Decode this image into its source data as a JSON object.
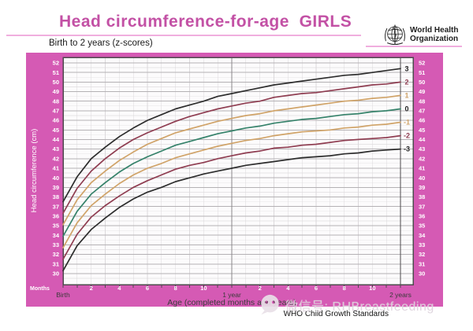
{
  "header": {
    "title": "Head circumference-for-age  GIRLS",
    "subtitle": "Birth to 2 years (z-scores)",
    "logo_line1": "World Health",
    "logo_line2": "Organization"
  },
  "colors": {
    "board_pink": "#d55ab4",
    "title_pink": "#c351a5",
    "rule_pink": "#f0aede",
    "plot_background": "#fcfbfc",
    "grid_major": "#b4b1b4",
    "grid_minor": "#e6e4e6",
    "grid_month": "#dcd9dc",
    "grid_year": "#8a878a",
    "plot_border": "#4d4a4d",
    "axis_text_light": "#ffffff",
    "axis_text_dark": "#3a3a3a"
  },
  "chart_data": {
    "type": "line",
    "title": "Head circumference-for-age GIRLS",
    "subtitle": "Birth to 2 years (z-scores)",
    "xlabel": "Age (completed months and years)",
    "ylabel": "Head circumference (cm)",
    "x_axis_unit": "Months",
    "xlim_months": [
      0,
      24
    ],
    "ylim": [
      30,
      52
    ],
    "grid": true,
    "legend_position": "inline-right-margin",
    "y_ticks": [
      30,
      31,
      32,
      33,
      34,
      35,
      36,
      37,
      38,
      39,
      40,
      41,
      42,
      43,
      44,
      45,
      46,
      47,
      48,
      49,
      50,
      51,
      52
    ],
    "x": [
      0,
      1,
      2,
      3,
      4,
      5,
      6,
      7,
      8,
      9,
      10,
      11,
      12,
      13,
      14,
      15,
      16,
      17,
      18,
      19,
      20,
      21,
      22,
      23,
      24
    ],
    "month_tick_labels": [
      {
        "month": 2,
        "label": "2"
      },
      {
        "month": 4,
        "label": "4"
      },
      {
        "month": 6,
        "label": "6"
      },
      {
        "month": 8,
        "label": "8"
      },
      {
        "month": 10,
        "label": "10"
      },
      {
        "month": 14,
        "label": "2"
      },
      {
        "month": 16,
        "label": "4"
      },
      {
        "month": 18,
        "label": "6"
      },
      {
        "month": 20,
        "label": "8"
      },
      {
        "month": 22,
        "label": "10"
      }
    ],
    "age_labels": [
      {
        "month": 0,
        "label": "Birth"
      },
      {
        "month": 12,
        "label": "1 year"
      },
      {
        "month": 24,
        "label": "2 years"
      }
    ],
    "series": [
      {
        "name": "z+3",
        "label": "3",
        "color": "#2d2d2d",
        "label_color": "#222222",
        "values": [
          37.5,
          40.1,
          42.0,
          43.2,
          44.3,
          45.2,
          46.0,
          46.6,
          47.2,
          47.6,
          48.0,
          48.5,
          48.8,
          49.1,
          49.4,
          49.7,
          49.9,
          50.1,
          50.3,
          50.5,
          50.7,
          50.8,
          51.0,
          51.2,
          51.4
        ]
      },
      {
        "name": "z+2",
        "label": "2",
        "color": "#8f3d51",
        "label_color": "#8f3d51",
        "values": [
          36.3,
          38.9,
          40.7,
          42.0,
          43.1,
          44.0,
          44.7,
          45.3,
          45.9,
          46.4,
          46.8,
          47.2,
          47.5,
          47.8,
          48.0,
          48.4,
          48.6,
          48.8,
          48.9,
          49.1,
          49.3,
          49.5,
          49.7,
          49.8,
          50.0
        ]
      },
      {
        "name": "z+1",
        "label": "1",
        "color": "#d0a368",
        "label_color": "#d0a368",
        "values": [
          35.1,
          37.7,
          39.5,
          40.7,
          41.8,
          42.7,
          43.5,
          44.1,
          44.7,
          45.1,
          45.5,
          45.9,
          46.2,
          46.5,
          46.7,
          47.0,
          47.2,
          47.4,
          47.6,
          47.8,
          48.0,
          48.1,
          48.3,
          48.4,
          48.6
        ]
      },
      {
        "name": "z0",
        "label": "0",
        "color": "#35826a",
        "label_color": "#222222",
        "values": [
          33.9,
          36.5,
          38.3,
          39.5,
          40.6,
          41.5,
          42.2,
          42.8,
          43.4,
          43.8,
          44.2,
          44.6,
          44.9,
          45.2,
          45.4,
          45.7,
          45.9,
          46.1,
          46.2,
          46.4,
          46.6,
          46.7,
          46.9,
          47.0,
          47.2
        ]
      },
      {
        "name": "z-1",
        "label": "-1",
        "color": "#d0a368",
        "label_color": "#d0a368",
        "values": [
          32.7,
          35.3,
          37.1,
          38.3,
          39.4,
          40.3,
          41.0,
          41.5,
          42.1,
          42.5,
          42.9,
          43.3,
          43.6,
          43.9,
          44.1,
          44.4,
          44.6,
          44.8,
          44.9,
          45.0,
          45.2,
          45.3,
          45.5,
          45.6,
          45.8
        ]
      },
      {
        "name": "z-2",
        "label": "-2",
        "color": "#8f3d51",
        "label_color": "#8f3d51",
        "values": [
          31.5,
          34.1,
          35.9,
          37.1,
          38.1,
          39.0,
          39.7,
          40.3,
          40.9,
          41.3,
          41.6,
          42.0,
          42.3,
          42.6,
          42.8,
          43.1,
          43.2,
          43.4,
          43.5,
          43.7,
          43.9,
          44.0,
          44.1,
          44.2,
          44.4
        ]
      },
      {
        "name": "z-3",
        "label": "-3",
        "color": "#2d2d2d",
        "label_color": "#222222",
        "values": [
          30.3,
          32.9,
          34.6,
          35.8,
          36.9,
          37.8,
          38.5,
          39.0,
          39.6,
          40.0,
          40.4,
          40.7,
          41.0,
          41.3,
          41.5,
          41.7,
          41.9,
          42.1,
          42.2,
          42.3,
          42.5,
          42.6,
          42.8,
          42.9,
          43.0
        ]
      }
    ]
  },
  "watermark": {
    "text": "微信号: RHBreastfeeding",
    "icon": "wechat-icon"
  },
  "footer": {
    "standards": "WHO Child Growth Standards"
  }
}
